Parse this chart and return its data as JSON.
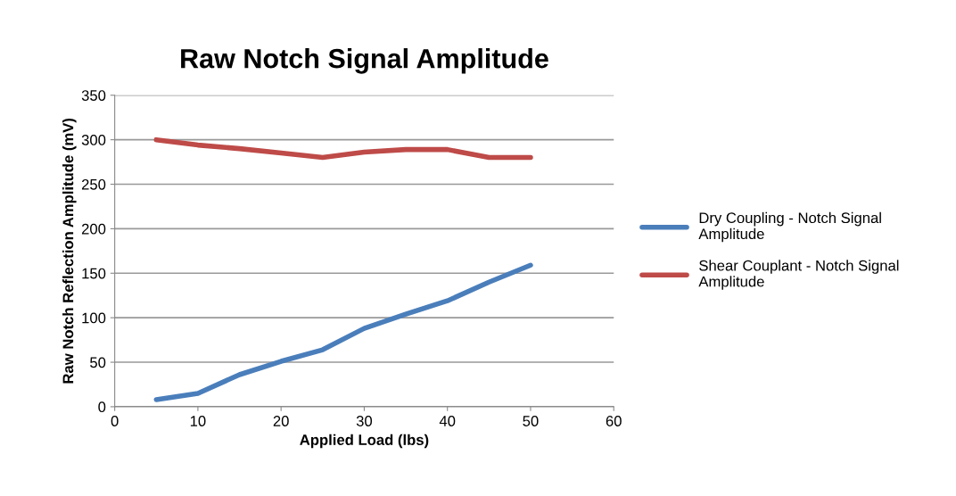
{
  "chart_data": {
    "type": "line",
    "title": "Raw Notch Signal Amplitude",
    "xlabel": "Applied Load (lbs)",
    "ylabel": "Raw Notch Reflection Amplitude (mV)",
    "x": [
      5,
      10,
      15,
      20,
      25,
      30,
      35,
      40,
      45,
      50
    ],
    "series": [
      {
        "name": "Dry Coupling - Notch Signal Amplitude",
        "color": "#4a7ebb",
        "values": [
          8,
          15,
          36,
          51,
          64,
          88,
          104,
          119,
          140,
          159
        ]
      },
      {
        "name": "Shear Couplant - Notch Signal Amplitude",
        "color": "#be4b48",
        "values": [
          300,
          294,
          290,
          285,
          280,
          286,
          289,
          289,
          280,
          280
        ]
      }
    ],
    "xlim": [
      0,
      60
    ],
    "xticks": [
      0,
      10,
      20,
      30,
      40,
      50,
      60
    ],
    "ylim": [
      0,
      350
    ],
    "yticks": [
      0,
      50,
      100,
      150,
      200,
      250,
      300,
      350
    ],
    "grid": "y",
    "legend": "right",
    "marker": "none",
    "line_style": "solid"
  }
}
